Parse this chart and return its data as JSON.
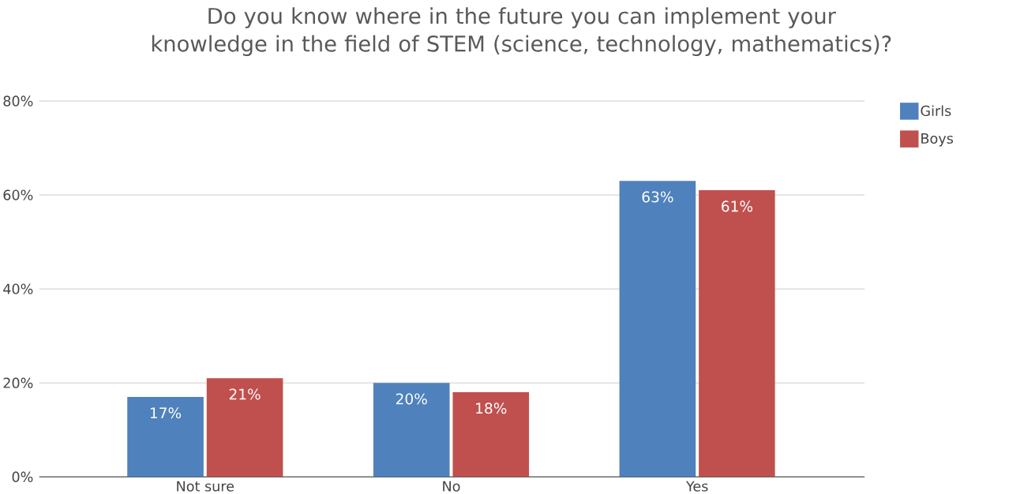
{
  "chart_data": {
    "type": "bar",
    "title": "Do you know where in the future you can implement your knowledge in the field of STEM (science, technology, mathematics)?",
    "categories": [
      "Not sure",
      "No",
      "Yes"
    ],
    "series": [
      {
        "name": "Girls",
        "color": "#4f81bd",
        "values": [
          17,
          20,
          63
        ],
        "value_labels": [
          "17%",
          "20%",
          "63%"
        ]
      },
      {
        "name": "Boys",
        "color": "#c0504d",
        "values": [
          21,
          18,
          61
        ],
        "value_labels": [
          "21%",
          "18%",
          "61%"
        ]
      }
    ],
    "ylim": [
      0,
      80
    ],
    "yticks": [
      {
        "value": 0,
        "label": "0%"
      },
      {
        "value": 20,
        "label": "20%"
      },
      {
        "value": 40,
        "label": "40%"
      },
      {
        "value": 60,
        "label": "60%"
      },
      {
        "value": 80,
        "label": "80%"
      }
    ],
    "grid": "y",
    "legend": "top right"
  }
}
